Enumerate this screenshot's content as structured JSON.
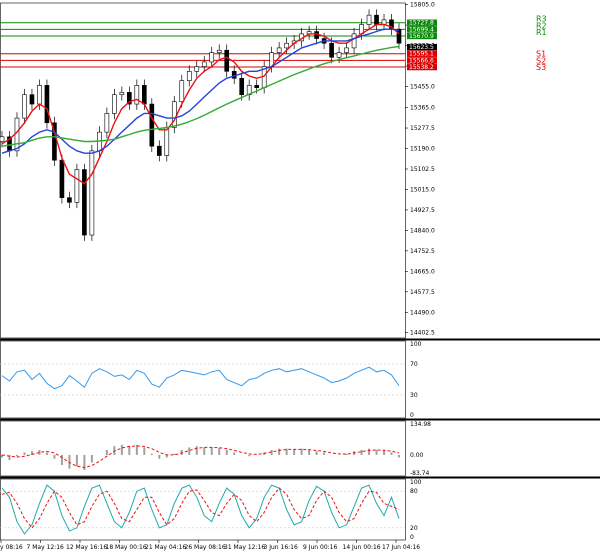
{
  "chart_data": {
    "type": "line",
    "main": {
      "y_range": [
        14380,
        15812
      ],
      "y_ticks": [
        "15805.0",
        "15717.5",
        "15630.0",
        "15542.5",
        "15455.0",
        "15365.0",
        "15277.5",
        "15190.0",
        "15102.5",
        "15015.0",
        "14927.5",
        "14840.0",
        "14752.5",
        "14665.0",
        "14577.5",
        "14490.0",
        "14402.5"
      ],
      "x_ticks": [
        "y 08:16",
        "7 May 12:16",
        "12 May 16:16",
        "18 May 00:16",
        "21 May 04:16",
        "26 May 08:16",
        "31 May 12:16",
        "3 Jun 16:16",
        "9 Jun 00:16",
        "14 Jun 00:16",
        "17 Jun 04:16"
      ],
      "levels": [
        {
          "label": "R3",
          "value": 15727.8,
          "badge": "15727.8",
          "color": "#0a8a0a"
        },
        {
          "label": "R2",
          "value": 15699.4,
          "badge": "15699.4",
          "color": "#0a8a0a"
        },
        {
          "label": "R1",
          "value": 15670.9,
          "badge": "15670.9",
          "color": "#0a8a0a"
        },
        {
          "label": "S1",
          "value": 15595.1,
          "badge": "15595.1",
          "color": "#dd0000"
        },
        {
          "label": "S2",
          "value": 15566.6,
          "badge": "15566.6",
          "color": "#dd0000"
        },
        {
          "label": "S3",
          "value": 15538.2,
          "badge": "15538.2",
          "color": "#dd0000"
        }
      ],
      "current_price": "15623.5",
      "candles_close": [
        15240,
        15180,
        15320,
        15420,
        15380,
        15460,
        15300,
        15140,
        14980,
        14960,
        15100,
        14820,
        15180,
        15260,
        15340,
        15420,
        15430,
        15380,
        15460,
        15380,
        15200,
        15160,
        15280,
        15390,
        15480,
        15520,
        15540,
        15560,
        15600,
        15610,
        15520,
        15490,
        15420,
        15460,
        15450,
        15540,
        15600,
        15620,
        15640,
        15650,
        15680,
        15690,
        15660,
        15640,
        15580,
        15600,
        15620,
        15680,
        15720,
        15760,
        15720,
        15740,
        15700,
        15640
      ],
      "series": [
        {
          "color": "#ee1111",
          "values": [
            15210,
            15230,
            15260,
            15300,
            15350,
            15380,
            15360,
            15260,
            15150,
            15080,
            15060,
            15040,
            15080,
            15150,
            15220,
            15300,
            15360,
            15390,
            15400,
            15380,
            15320,
            15270,
            15270,
            15310,
            15380,
            15440,
            15490,
            15520,
            15540,
            15570,
            15580,
            15560,
            15520,
            15500,
            15490,
            15500,
            15540,
            15580,
            15610,
            15640,
            15660,
            15680,
            15680,
            15670,
            15650,
            15640,
            15640,
            15660,
            15680,
            15700,
            15720,
            15720,
            15710,
            15680
          ]
        },
        {
          "color": "#2244dd",
          "values": [
            15170,
            15180,
            15190,
            15210,
            15240,
            15260,
            15270,
            15260,
            15230,
            15200,
            15180,
            15170,
            15170,
            15180,
            15200,
            15230,
            15260,
            15290,
            15320,
            15340,
            15340,
            15330,
            15320,
            15320,
            15330,
            15350,
            15380,
            15410,
            15440,
            15470,
            15490,
            15500,
            15510,
            15520,
            15520,
            15530,
            15540,
            15560,
            15580,
            15600,
            15620,
            15630,
            15640,
            15650,
            15650,
            15650,
            15650,
            15660,
            15670,
            15680,
            15690,
            15700,
            15700,
            15695
          ]
        },
        {
          "color": "#33aa33",
          "values": [
            15200,
            15205,
            15210,
            15215,
            15225,
            15235,
            15240,
            15240,
            15235,
            15230,
            15225,
            15220,
            15220,
            15222,
            15225,
            15230,
            15240,
            15250,
            15260,
            15268,
            15272,
            15276,
            15280,
            15286,
            15294,
            15305,
            15318,
            15332,
            15348,
            15364,
            15380,
            15394,
            15408,
            15422,
            15436,
            15450,
            15464,
            15478,
            15492,
            15506,
            15518,
            15530,
            15542,
            15552,
            15562,
            15570,
            15578,
            15586,
            15594,
            15602,
            15610,
            15616,
            15622,
            15626
          ]
        }
      ]
    },
    "rsi": {
      "y_labels": [
        "100",
        "70",
        "30",
        "0"
      ],
      "y_range": [
        0,
        100
      ],
      "color": "#3399ee",
      "values": [
        55,
        48,
        60,
        62,
        50,
        58,
        45,
        38,
        42,
        55,
        48,
        40,
        58,
        64,
        60,
        54,
        56,
        50,
        62,
        58,
        44,
        40,
        52,
        56,
        62,
        60,
        58,
        56,
        60,
        62,
        50,
        46,
        42,
        50,
        52,
        58,
        62,
        64,
        60,
        62,
        64,
        60,
        56,
        52,
        46,
        48,
        52,
        58,
        62,
        66,
        60,
        62,
        56,
        42
      ]
    },
    "macd": {
      "y_labels": [
        "134.98",
        "0.00",
        "-83.74"
      ],
      "y_range": [
        -83.74,
        134.98
      ],
      "hist_color": "#a0a0a0",
      "signal_color": "#ee1111",
      "histogram": [
        -10,
        -20,
        -5,
        10,
        15,
        20,
        10,
        -15,
        -40,
        -55,
        -45,
        -60,
        -30,
        0,
        20,
        35,
        40,
        35,
        40,
        30,
        5,
        -15,
        -10,
        5,
        20,
        30,
        35,
        30,
        30,
        28,
        20,
        10,
        0,
        -5,
        0,
        10,
        20,
        25,
        25,
        22,
        25,
        22,
        15,
        10,
        0,
        0,
        5,
        15,
        20,
        25,
        20,
        18,
        10,
        -10
      ],
      "signal": [
        0,
        -5,
        -8,
        -5,
        2,
        10,
        14,
        8,
        -10,
        -30,
        -45,
        -50,
        -42,
        -25,
        -5,
        15,
        28,
        34,
        36,
        34,
        25,
        10,
        0,
        0,
        8,
        18,
        26,
        30,
        30,
        29,
        25,
        18,
        10,
        4,
        2,
        6,
        12,
        18,
        22,
        22,
        22,
        21,
        18,
        14,
        8,
        4,
        3,
        8,
        13,
        18,
        20,
        19,
        15,
        8
      ]
    },
    "stochastic": {
      "y_labels": [
        "100",
        "80",
        "20",
        "0"
      ],
      "y_range": [
        0,
        100
      ],
      "k_color": "#22aaaa",
      "d_color": "#ee1111",
      "k": [
        85,
        70,
        30,
        10,
        25,
        60,
        90,
        80,
        40,
        15,
        20,
        55,
        85,
        90,
        60,
        30,
        20,
        45,
        80,
        85,
        50,
        20,
        25,
        60,
        85,
        90,
        70,
        40,
        30,
        60,
        85,
        75,
        40,
        20,
        35,
        70,
        90,
        85,
        50,
        25,
        30,
        65,
        88,
        80,
        45,
        20,
        25,
        55,
        85,
        90,
        60,
        40,
        70,
        35
      ],
      "d": [
        75,
        78,
        60,
        35,
        20,
        35,
        60,
        80,
        70,
        45,
        25,
        30,
        55,
        75,
        80,
        60,
        35,
        30,
        50,
        70,
        70,
        45,
        25,
        35,
        60,
        80,
        82,
        65,
        45,
        40,
        60,
        75,
        65,
        40,
        30,
        45,
        70,
        85,
        75,
        50,
        35,
        40,
        65,
        80,
        70,
        45,
        30,
        35,
        60,
        80,
        78,
        60,
        55,
        50
      ]
    }
  }
}
